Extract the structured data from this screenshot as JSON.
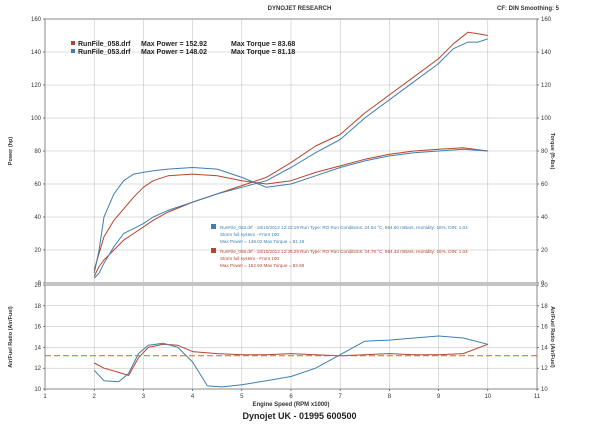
{
  "header": {
    "title": "DYNOJET RESEARCH",
    "corner": "CF: DIN Smoothing: 5"
  },
  "footer": "Dynojet UK - 01995 600500",
  "colors": {
    "run058": "#b5452f",
    "run053": "#3f7fae",
    "afr_reference": "#c86a3a",
    "grid": "#b9b9b9",
    "axis": "#333333"
  },
  "top_legend": [
    {
      "file": "RunFile_058.drf",
      "power_label": "Max Power = 152.92",
      "torque_label": "Max Torque = 83.68",
      "color": "#b5452f"
    },
    {
      "file": "RunFile_053.drf",
      "power_label": "Max Power = 148.02",
      "torque_label": "Max Torque = 81.18",
      "color": "#3f7fae"
    }
  ],
  "run_info": [
    {
      "line1": "RunFile_053.drf - 18/10/2012 12:22:19   Run Type: RO   Run Conditions: 24.64 °C, 984.60 mBars,  Humidity: 16%, DIN: 1.04",
      "line2": "Storm full system - Front 100",
      "line3": "Max Power = 148.02   Max Torque = 81.18",
      "color": "#3f7fae"
    },
    {
      "line1": "RunFile_058.drf - 18/10/2012 12:35:29   Run Type: RO   Run Conditions: 24.78 °C, 984.43 mBars,  Humidity: 16%, DIN: 1.04",
      "line2": "Storm full system - Front 100",
      "line3": "Max Power = 152.92   Max Torque = 83.68",
      "color": "#b5452f"
    }
  ],
  "chart_data": [
    {
      "type": "line",
      "title": "",
      "xlabel": "Engine Speed (RPM x1000)",
      "ylabel": "Power (hp)",
      "ylabel_right": "Torque (ft-lbs)",
      "xlim": [
        1,
        11
      ],
      "ylim": [
        0,
        160
      ],
      "ylim_right": [
        0,
        160
      ],
      "x_ticks": [
        1,
        2,
        3,
        4,
        5,
        6,
        7,
        8,
        9,
        10,
        11
      ],
      "y_ticks": [
        0,
        20,
        40,
        60,
        80,
        100,
        120,
        140,
        160
      ],
      "y_ticks_right": [
        0,
        20,
        40,
        60,
        80,
        100,
        120,
        140,
        160
      ],
      "grid": true,
      "legend_position": "top-left",
      "series": [
        {
          "name": "RunFile_058.drf Power",
          "color": "#b5452f",
          "x": [
            2.0,
            2.1,
            2.2,
            2.4,
            2.6,
            2.8,
            3.0,
            3.2,
            3.5,
            4.0,
            4.5,
            5.0,
            5.5,
            6.0,
            6.5,
            7.0,
            7.5,
            8.0,
            8.5,
            9.0,
            9.3,
            9.6,
            9.8,
            10.0
          ],
          "y": [
            4,
            10,
            14,
            20,
            26,
            30,
            34,
            38,
            43,
            49,
            54,
            59,
            64,
            73,
            83,
            90,
            103,
            114,
            125,
            136,
            145,
            152,
            151,
            150
          ]
        },
        {
          "name": "RunFile_053.drf Power",
          "color": "#3f7fae",
          "x": [
            2.0,
            2.1,
            2.2,
            2.4,
            2.6,
            2.8,
            3.0,
            3.2,
            3.5,
            4.0,
            4.5,
            5.0,
            5.5,
            6.0,
            6.5,
            7.0,
            7.5,
            8.0,
            8.5,
            9.0,
            9.3,
            9.6,
            9.8,
            10.0
          ],
          "y": [
            3,
            6,
            12,
            22,
            30,
            33,
            36,
            40,
            44,
            49,
            54,
            58,
            62,
            70,
            79,
            87,
            100,
            111,
            122,
            133,
            142,
            146,
            146,
            148
          ]
        },
        {
          "name": "RunFile_058.drf Torque",
          "color": "#b5452f",
          "x": [
            2.0,
            2.1,
            2.2,
            2.4,
            2.6,
            2.8,
            3.0,
            3.2,
            3.5,
            4.0,
            4.5,
            5.0,
            5.5,
            6.0,
            6.5,
            7.0,
            7.5,
            8.0,
            8.5,
            9.0,
            9.5,
            10.0
          ],
          "y": [
            8,
            18,
            28,
            38,
            45,
            52,
            58,
            62,
            65,
            66,
            65,
            62,
            60,
            62,
            67,
            71,
            75,
            78,
            80,
            81,
            82,
            80
          ]
        },
        {
          "name": "RunFile_053.drf Torque",
          "color": "#3f7fae",
          "x": [
            2.0,
            2.1,
            2.2,
            2.4,
            2.6,
            2.8,
            3.0,
            3.2,
            3.5,
            4.0,
            4.5,
            5.0,
            5.5,
            6.0,
            6.5,
            7.0,
            7.5,
            8.0,
            8.5,
            9.0,
            9.5,
            10.0
          ],
          "y": [
            6,
            20,
            40,
            54,
            62,
            66,
            67,
            68,
            69,
            70,
            69,
            64,
            58,
            60,
            65,
            70,
            74,
            77,
            79,
            80,
            81,
            80
          ]
        }
      ]
    },
    {
      "type": "line",
      "title": "",
      "xlabel": "Engine Speed (RPM x1000)",
      "ylabel": "Air/Fuel Ratio (Air/Fuel)",
      "ylabel_right": "Air/Fuel Ratio (Air/Fuel)",
      "xlim": [
        1,
        11
      ],
      "ylim": [
        10,
        20
      ],
      "ylim_right": [
        10,
        20
      ],
      "x_ticks": [
        1,
        2,
        3,
        4,
        5,
        6,
        7,
        8,
        9,
        10,
        11
      ],
      "y_ticks": [
        10,
        12,
        14,
        16,
        18,
        20
      ],
      "y_ticks_right": [
        10,
        12,
        14,
        16,
        18,
        20
      ],
      "grid": true,
      "series": [
        {
          "name": "RunFile_058.drf AFR",
          "color": "#b5452f",
          "x": [
            2.0,
            2.2,
            2.5,
            2.7,
            2.9,
            3.1,
            3.4,
            3.7,
            4.0,
            4.5,
            5.0,
            5.5,
            6.0,
            6.5,
            7.0,
            7.5,
            8.0,
            8.5,
            9.0,
            9.5,
            10.0
          ],
          "y": [
            12.5,
            12.0,
            11.6,
            11.3,
            13.0,
            14.0,
            14.3,
            14.2,
            13.6,
            13.4,
            13.3,
            13.3,
            13.4,
            13.3,
            13.2,
            13.3,
            13.4,
            13.3,
            13.3,
            13.4,
            14.3
          ]
        },
        {
          "name": "RunFile_053.drf AFR",
          "color": "#3f7fae",
          "x": [
            2.0,
            2.2,
            2.5,
            2.7,
            2.9,
            3.1,
            3.4,
            3.7,
            4.0,
            4.3,
            4.6,
            5.0,
            5.5,
            6.0,
            6.5,
            7.0,
            7.5,
            8.0,
            8.5,
            9.0,
            9.5,
            10.0
          ],
          "y": [
            11.8,
            10.8,
            10.7,
            11.5,
            13.4,
            14.2,
            14.4,
            14.0,
            12.6,
            10.3,
            10.2,
            10.4,
            10.8,
            11.2,
            12.0,
            13.3,
            14.6,
            14.7,
            14.9,
            15.1,
            14.9,
            14.3
          ]
        },
        {
          "name": "AFR reference",
          "color": "#c86a3a",
          "dashed": true,
          "x": [
            1.0,
            11.0
          ],
          "y": [
            13.2,
            13.2
          ]
        }
      ]
    }
  ]
}
